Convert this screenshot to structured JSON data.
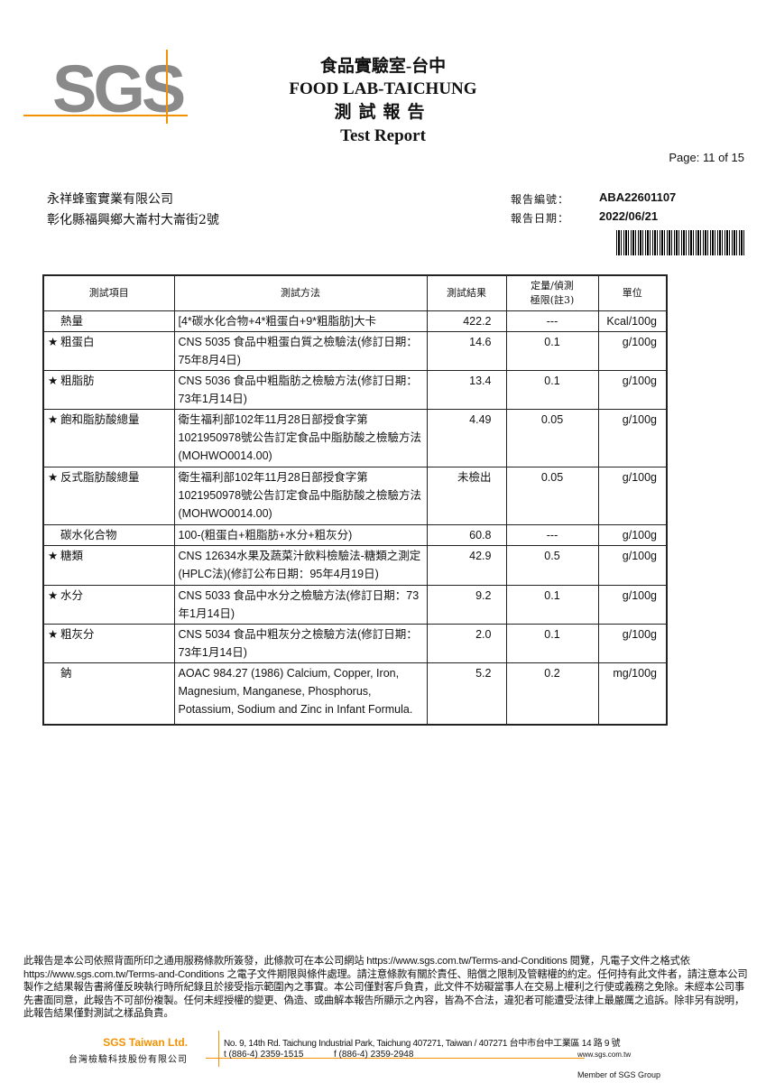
{
  "header": {
    "logo": "SGS",
    "lab_zh": "食品實驗室-台中",
    "lab_en": "FOOD LAB-TAICHUNG",
    "report_zh": "測試報告",
    "report_en": "Test Report",
    "page": "Page: 11 of 15"
  },
  "customer": {
    "name": "永祥蜂蜜實業有限公司",
    "address": "彰化縣福興鄉大崙村大崙街2號"
  },
  "meta": {
    "report_no_label": "報告編號：",
    "report_no": "ABA22601107",
    "report_date_label": "報告日期：",
    "report_date": "2022/06/21"
  },
  "table": {
    "headers": [
      "測試項目",
      "測試方法",
      "測試結果",
      "定量/偵測\n極限(註3)",
      "單位"
    ],
    "rows": [
      {
        "star": "",
        "item": "熱量",
        "method": "[4*碳水化合物+4*粗蛋白+9*粗脂肪]大卡",
        "result": "422.2",
        "limit": "---",
        "unit": "Kcal/100g"
      },
      {
        "star": "★",
        "item": "粗蛋白",
        "method": "CNS 5035 食品中粗蛋白質之檢驗法(修訂日期：75年8月4日)",
        "result": "14.6",
        "limit": "0.1",
        "unit": "g/100g"
      },
      {
        "star": "★",
        "item": "粗脂肪",
        "method": "CNS 5036 食品中粗脂肪之檢驗方法(修訂日期：73年1月14日)",
        "result": "13.4",
        "limit": "0.1",
        "unit": "g/100g"
      },
      {
        "star": "★",
        "item": "飽和脂肪酸總量",
        "method": "衛生福利部102年11月28日部授食字第1021950978號公告訂定食品中脂肪酸之檢驗方法(MOHWO0014.00)",
        "result": "4.49",
        "limit": "0.05",
        "unit": "g/100g"
      },
      {
        "star": "★",
        "item": "反式脂肪酸總量",
        "method": "衛生福利部102年11月28日部授食字第1021950978號公告訂定食品中脂肪酸之檢驗方法(MOHWO0014.00)",
        "result": "未檢出",
        "limit": "0.05",
        "unit": "g/100g"
      },
      {
        "star": "",
        "item": "碳水化合物",
        "method": "100-(粗蛋白+粗脂肪+水分+粗灰分)",
        "result": "60.8",
        "limit": "---",
        "unit": "g/100g"
      },
      {
        "star": "★",
        "item": "糖類",
        "method": "CNS 12634水果及蔬菜汁飲料檢驗法-糖類之測定(HPLC法)(修訂公布日期：95年4月19日)",
        "result": "42.9",
        "limit": "0.5",
        "unit": "g/100g"
      },
      {
        "star": "★",
        "item": "水分",
        "method": "CNS 5033 食品中水分之檢驗方法(修訂日期：73年1月14日)",
        "result": "9.2",
        "limit": "0.1",
        "unit": "g/100g"
      },
      {
        "star": "★",
        "item": "粗灰分",
        "method": "CNS 5034 食品中粗灰分之檢驗方法(修訂日期：73年1月14日)",
        "result": "2.0",
        "limit": "0.1",
        "unit": "g/100g"
      },
      {
        "star": "",
        "item": "鈉",
        "method": "AOAC 984.27 (1986) Calcium, Copper, Iron, Magnesium, Manganese, Phosphorus, Potassium, Sodium and Zinc in Infant Formula.",
        "result": "5.2",
        "limit": "0.2",
        "unit": "mg/100g"
      }
    ]
  },
  "disclaimer": {
    "p1": "此報告是本公司依照背面所印之通用服務條款所簽發，此條款可在本公司網站 ",
    "link1": "https://www.sgs.com.tw/Terms-and-Conditions",
    "p2": " 閱覽，凡電子文件之格式依",
    "link2": "https://www.sgs.com.tw/Terms-and-Conditions",
    "p3": " 之電子文件期限與條件處理。請注意條款有關於責任、賠償之限制及管轄權的約定。任何持有此文件者，請注意本公司製作之結果報告書將僅反映執行時所紀錄且於接受指示範圍內之事實。本公司僅對客戶負責，此文件不妨礙當事人在交易上權利之行使或義務之免除。未經本公司事先書面同意，此報告不可部份複製。任何未經授權的變更、偽造、或曲解本報告所顯示之內容，皆為不合法，違犯者可能遭受法律上最嚴厲之追訴。除非另有說明，此報告結果僅對測試之樣品負責。"
  },
  "footer": {
    "company_en": "SGS Taiwan Ltd.",
    "company_zh": "台灣檢驗科技股份有限公司",
    "address": "No. 9, 14th Rd. Taichung Industrial Park, Taichung 407271, Taiwan / 407271 台中市台中工業區 14 路 9 號",
    "tel": "t (886-4) 2359-1515",
    "fax": "f (886-4) 2359-2948",
    "web": "www.sgs.com.tw",
    "member": "Member of SGS Group"
  },
  "colors": {
    "brand_orange": "#f39200",
    "logo_gray": "#8a8a8a"
  }
}
